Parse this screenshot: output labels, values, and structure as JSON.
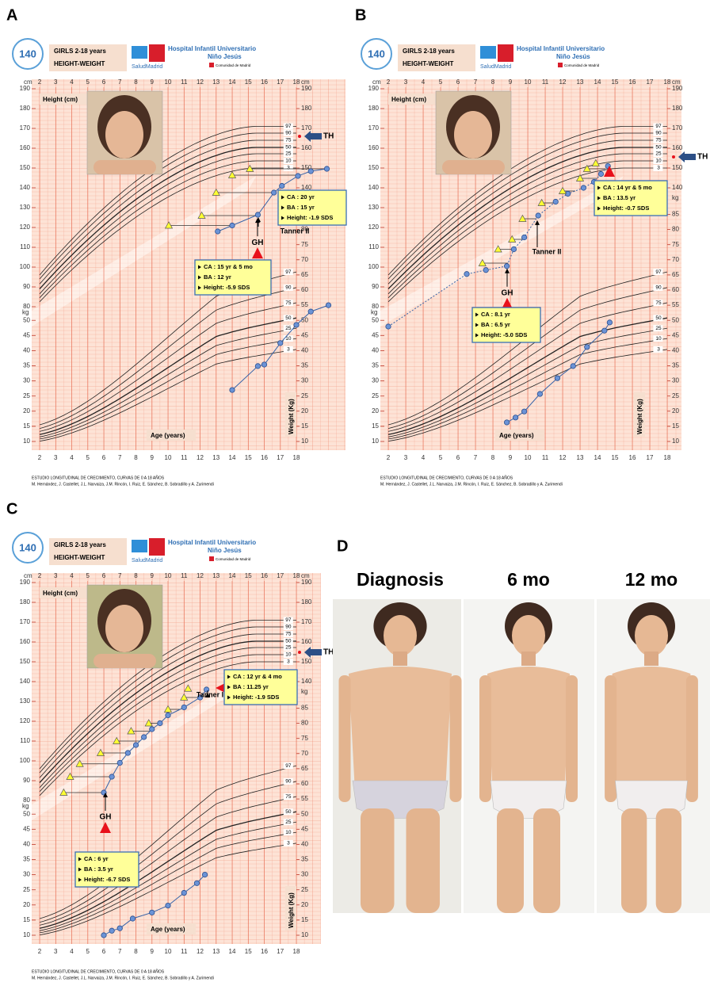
{
  "template": {
    "chart_title": "GIRLS 2-18 years",
    "chart_subtitle": "HEIGHT-WEIGHT",
    "logo_number": "140",
    "hospital_line1": "Hospital Infantil Universitario",
    "hospital_line2": "Niño Jesús",
    "salud": "SaludMadrid",
    "comunidad": "Comunidad de Madrid",
    "cm": "cm",
    "kg": "kg",
    "height_label": "Height (cm)",
    "weight_label": "Weight (Kg)",
    "age_label": "Age (years)",
    "footer_line1": "ESTUDIO LONGITUDINAL DE CRECIMIENTO, CURVAS DE 0 A 18 AÑOS",
    "footer_line2": "M. Hernández, J. Castellet, J.L. Narvaiza, J.M. Rincón, I. Ruiz, E. Sánchez, B. Sobradillo y A. Zurimendi",
    "age_ticks": [
      2,
      3,
      4,
      5,
      6,
      7,
      8,
      9,
      10,
      11,
      12,
      13,
      14,
      15,
      16,
      17,
      18
    ],
    "height_ticks_left": [
      80,
      90,
      100,
      110,
      120,
      130,
      140,
      150,
      160,
      170,
      180,
      190
    ],
    "height_ticks_right": [
      140,
      150,
      160,
      170,
      180,
      190
    ],
    "weight_ticks_left": [
      10,
      15,
      20,
      25,
      30,
      35,
      40,
      45,
      50
    ],
    "weight_ticks_right": [
      10,
      15,
      20,
      25,
      30,
      35,
      40,
      45,
      50,
      55,
      60,
      65,
      70,
      75,
      80,
      85
    ],
    "percentiles": [
      97,
      90,
      75,
      50,
      25,
      10,
      3
    ],
    "th": "TH",
    "gh": "GH"
  },
  "panels": [
    {
      "label": "A",
      "tanner": "Tanner II",
      "target_height": 166,
      "height": [
        [
          13.1,
          118
        ],
        [
          14,
          121
        ],
        [
          15.6,
          126.4
        ],
        [
          16.6,
          137.6
        ],
        [
          17.1,
          141
        ],
        [
          18.1,
          146
        ],
        [
          18.9,
          148.4
        ],
        [
          19.9,
          149.6
        ]
      ],
      "bone_age": [
        [
          10.05,
          121
        ],
        [
          12.1,
          126
        ],
        [
          13,
          137.6
        ],
        [
          14,
          146.4
        ],
        [
          15.1,
          149.6
        ]
      ],
      "weight": [
        [
          14,
          27
        ],
        [
          15.6,
          34.9
        ],
        [
          16,
          35.4
        ],
        [
          17,
          42.5
        ],
        [
          18,
          48.5
        ],
        [
          18.9,
          52.9
        ],
        [
          20,
          55
        ]
      ],
      "boxes": [
        [
          "CA : 15 yr & 5 mo",
          "BA : 12 yr",
          "Height: -5.9 SDS"
        ],
        [
          "CA : 20 yr",
          "BA : 15 yr",
          "Height: -1.9 SDS"
        ]
      ]
    },
    {
      "label": "B",
      "tanner": "Tanner II",
      "target_height": 155.6,
      "height": [
        [
          2,
          70
        ],
        [
          6.5,
          96.5
        ],
        [
          7.6,
          98.5
        ],
        [
          8.8,
          100.5
        ],
        [
          9.2,
          109
        ],
        [
          9.8,
          115
        ],
        [
          10.6,
          126
        ],
        [
          11.6,
          133
        ],
        [
          12.3,
          137
        ],
        [
          13.2,
          140
        ],
        [
          13.8,
          143
        ],
        [
          14.2,
          147
        ],
        [
          14.6,
          151
        ]
      ],
      "bone_age": [
        [
          7.4,
          102
        ],
        [
          8.3,
          109
        ],
        [
          9.1,
          114
        ],
        [
          9.7,
          124.4
        ],
        [
          10.8,
          132.4
        ],
        [
          12,
          138.4
        ],
        [
          13,
          144.8
        ],
        [
          13.4,
          149.6
        ],
        [
          13.9,
          152.4
        ]
      ],
      "weight": [
        [
          8.8,
          16.3
        ],
        [
          9.3,
          17.9
        ],
        [
          9.8,
          19.9
        ],
        [
          10.7,
          25.7
        ],
        [
          11.7,
          30.9
        ],
        [
          12.6,
          34.9
        ],
        [
          13.4,
          41.2
        ],
        [
          14.4,
          46.6
        ],
        [
          14.7,
          49.3
        ]
      ],
      "boxes": [
        [
          "CA : 8.1 yr",
          "BA : 6.5 yr",
          "Height: -5.0 SDS"
        ],
        [
          "CA : 14 yr & 5 mo",
          "BA : 13.5 yr",
          "Height: -0.7 SDS"
        ]
      ]
    },
    {
      "label": "C",
      "tanner": "Tanner  I",
      "target_height": 154.8,
      "height": [
        [
          6,
          84
        ],
        [
          6.5,
          92
        ],
        [
          7,
          99
        ],
        [
          7.5,
          104
        ],
        [
          8,
          108
        ],
        [
          8.5,
          112
        ],
        [
          9,
          116
        ],
        [
          9.5,
          119
        ],
        [
          10,
          123
        ],
        [
          11,
          127
        ],
        [
          12,
          132
        ],
        [
          12.4,
          136
        ]
      ],
      "bone_age": [
        [
          3.5,
          84
        ],
        [
          3.9,
          92
        ],
        [
          4.5,
          98.5
        ],
        [
          5.8,
          104
        ],
        [
          6.8,
          110
        ],
        [
          7.7,
          115
        ],
        [
          8.8,
          119
        ],
        [
          10,
          126
        ],
        [
          11,
          132
        ],
        [
          11.25,
          136.5
        ]
      ],
      "weight": [
        [
          6,
          10
        ],
        [
          6.5,
          11.5
        ],
        [
          7,
          12.3
        ],
        [
          7.8,
          15.5
        ],
        [
          9,
          17.5
        ],
        [
          10,
          19.8
        ],
        [
          11,
          24
        ],
        [
          11.8,
          27.2
        ],
        [
          12.3,
          30
        ]
      ],
      "boxes": [
        [
          "CA : 6 yr",
          "BA : 3.5 yr",
          "Height: -6.7 SDS"
        ],
        [
          "CA : 12 yr & 4 mo",
          "BA : 11.25 yr",
          "Height: -1.9 SDS"
        ]
      ]
    }
  ],
  "panel_d": {
    "label": "D",
    "captions": [
      "Diagnosis",
      "6 mo",
      "12 mo"
    ]
  }
}
